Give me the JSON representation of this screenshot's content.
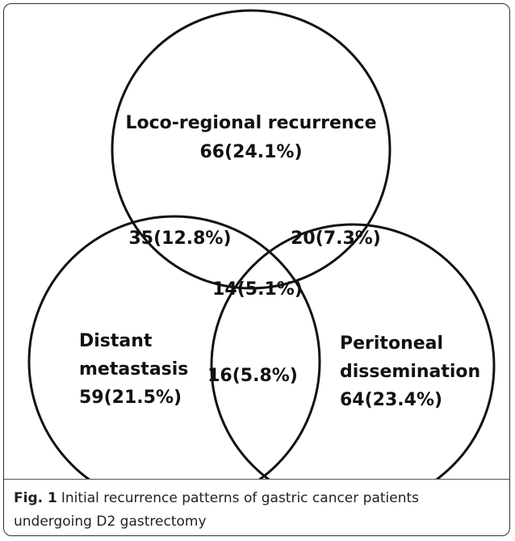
{
  "regions": [
    {
      "lines": [
        "Loco-regional  recurrence",
        "66(24.1%)"
      ]
    },
    {
      "lines": [
        "35(12.8%)"
      ]
    },
    {
      "lines": [
        "20(7.3%)"
      ]
    },
    {
      "lines": [
        "14(5.1%)"
      ]
    },
    {
      "lines": [
        "Distant",
        "metastasis",
        "59(21.5%)"
      ]
    },
    {
      "lines": [
        "16(5.8%)"
      ]
    },
    {
      "lines": [
        "Peritoneal",
        "dissemination",
        "64(23.4%)"
      ]
    }
  ],
  "caption": {
    "label": "Fig. 1",
    "text": "Initial recurrence patterns of gastric cancer patients undergoing D2 gastrectomy"
  }
}
